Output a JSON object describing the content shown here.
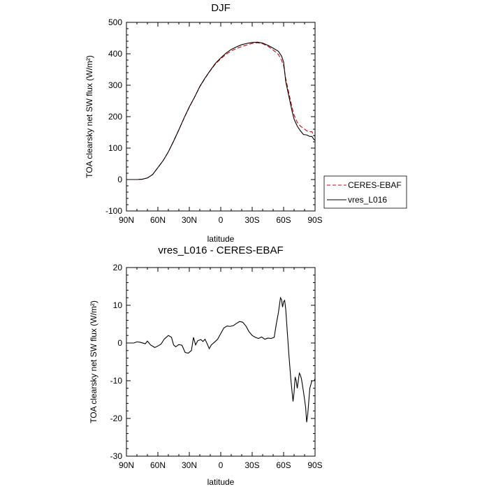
{
  "chart_data": [
    {
      "type": "line",
      "title": "DJF",
      "xlabel": "latitude",
      "ylabel": "TOA clearsky net SW flux (W/m²)",
      "xlim": [
        -90,
        90
      ],
      "ylim": [
        -100,
        500
      ],
      "x_ticks": [
        -90,
        -60,
        -30,
        0,
        30,
        60,
        90
      ],
      "x_tick_labels": [
        "90N",
        "60N",
        "30N",
        "0",
        "30S",
        "60S",
        "90S"
      ],
      "y_ticks": [
        -100,
        0,
        100,
        200,
        300,
        400,
        500
      ],
      "y_tick_labels": [
        "-100",
        "0",
        "100",
        "200",
        "300",
        "400",
        "500"
      ],
      "legend_position": "outside-right",
      "series": [
        {
          "name": "CERES-EBAF",
          "color": "#e00000",
          "dash": "dashed",
          "points": [
            [
              -90,
              0
            ],
            [
              -80,
              0
            ],
            [
              -75,
              1
            ],
            [
              -70,
              5
            ],
            [
              -65,
              16
            ],
            [
              -60,
              38
            ],
            [
              -55,
              60
            ],
            [
              -50,
              88
            ],
            [
              -45,
              122
            ],
            [
              -40,
              158
            ],
            [
              -35,
              195
            ],
            [
              -30,
              230
            ],
            [
              -25,
              262
            ],
            [
              -20,
              295
            ],
            [
              -15,
              322
            ],
            [
              -10,
              346
            ],
            [
              -5,
              368
            ],
            [
              0,
              384
            ],
            [
              5,
              398
            ],
            [
              10,
              409
            ],
            [
              15,
              417
            ],
            [
              20,
              423
            ],
            [
              25,
              428
            ],
            [
              30,
              433
            ],
            [
              35,
              435
            ],
            [
              40,
              432
            ],
            [
              45,
              424
            ],
            [
              50,
              412
            ],
            [
              55,
              398
            ],
            [
              58,
              380
            ],
            [
              60,
              362
            ],
            [
              62,
              322
            ],
            [
              65,
              275
            ],
            [
              68,
              230
            ],
            [
              70,
              205
            ],
            [
              73,
              182
            ],
            [
              76,
              170
            ],
            [
              79,
              163
            ],
            [
              82,
              155
            ],
            [
              85,
              152
            ],
            [
              87,
              152
            ],
            [
              89,
              140
            ],
            [
              90,
              138
            ]
          ]
        },
        {
          "name": "vres_L016",
          "color": "#000000",
          "dash": "solid",
          "points": [
            [
              -90,
              0
            ],
            [
              -80,
              0
            ],
            [
              -75,
              1
            ],
            [
              -70,
              5
            ],
            [
              -65,
              16
            ],
            [
              -60,
              38
            ],
            [
              -55,
              60
            ],
            [
              -50,
              88
            ],
            [
              -45,
              122
            ],
            [
              -40,
              158
            ],
            [
              -35,
              196
            ],
            [
              -30,
              231
            ],
            [
              -25,
              262
            ],
            [
              -20,
              296
            ],
            [
              -15,
              323
            ],
            [
              -10,
              347
            ],
            [
              -5,
              370
            ],
            [
              0,
              387
            ],
            [
              5,
              402
            ],
            [
              10,
              414
            ],
            [
              15,
              422
            ],
            [
              20,
              429
            ],
            [
              25,
              433
            ],
            [
              30,
              436
            ],
            [
              35,
              437
            ],
            [
              40,
              434
            ],
            [
              45,
              427
            ],
            [
              50,
              418
            ],
            [
              55,
              408
            ],
            [
              58,
              393
            ],
            [
              60,
              374
            ],
            [
              62,
              312
            ],
            [
              65,
              265
            ],
            [
              68,
              218
            ],
            [
              70,
              192
            ],
            [
              73,
              170
            ],
            [
              76,
              155
            ],
            [
              79,
              143
            ],
            [
              82,
              142
            ],
            [
              85,
              137
            ],
            [
              87,
              137
            ],
            [
              89,
              127
            ],
            [
              90,
              125
            ]
          ]
        }
      ]
    },
    {
      "type": "line",
      "title": "vres_L016 - CERES-EBAF",
      "xlabel": "latitude",
      "ylabel": "TOA clearsky net SW flux (W/m²)",
      "xlim": [
        -90,
        90
      ],
      "ylim": [
        -30,
        20
      ],
      "x_ticks": [
        -90,
        -60,
        -30,
        0,
        30,
        60,
        90
      ],
      "x_tick_labels": [
        "90N",
        "60N",
        "30N",
        "0",
        "30S",
        "60S",
        "90S"
      ],
      "y_ticks": [
        -30,
        -20,
        -10,
        0,
        10,
        20
      ],
      "y_tick_labels": [
        "-30",
        "-20",
        "-10",
        "0",
        "10",
        "20"
      ],
      "series": [
        {
          "name": "",
          "color": "#000000",
          "dash": "solid",
          "points": [
            [
              -90,
              0
            ],
            [
              -83,
              0
            ],
            [
              -80,
              0.3
            ],
            [
              -77,
              0.2
            ],
            [
              -72,
              -0.2
            ],
            [
              -70,
              0.5
            ],
            [
              -67,
              -0.5
            ],
            [
              -63,
              -1.2
            ],
            [
              -60,
              -0.8
            ],
            [
              -57,
              -0.3
            ],
            [
              -54,
              1
            ],
            [
              -50,
              2
            ],
            [
              -47,
              1.5
            ],
            [
              -45,
              -0.5
            ],
            [
              -43,
              -1
            ],
            [
              -40,
              -0.4
            ],
            [
              -37,
              -0.6
            ],
            [
              -34,
              -2.5
            ],
            [
              -31,
              -2.7
            ],
            [
              -28,
              -2
            ],
            [
              -26,
              1.5
            ],
            [
              -24,
              -0.5
            ],
            [
              -22,
              0.6
            ],
            [
              -19,
              0.9
            ],
            [
              -17,
              0.4
            ],
            [
              -15,
              1
            ],
            [
              -13,
              -0.2
            ],
            [
              -11,
              -1.5
            ],
            [
              -9,
              -0.5
            ],
            [
              -6,
              0.2
            ],
            [
              -3,
              1
            ],
            [
              0,
              2.5
            ],
            [
              3,
              4
            ],
            [
              6,
              4.5
            ],
            [
              9,
              4.4
            ],
            [
              12,
              4.6
            ],
            [
              15,
              5.2
            ],
            [
              18,
              5.7
            ],
            [
              21,
              5.5
            ],
            [
              24,
              4.5
            ],
            [
              27,
              3
            ],
            [
              30,
              2
            ],
            [
              33,
              1.5
            ],
            [
              36,
              1.2
            ],
            [
              39,
              1.6
            ],
            [
              42,
              1
            ],
            [
              45,
              1.3
            ],
            [
              48,
              1.2
            ],
            [
              51,
              1.5
            ],
            [
              53,
              5
            ],
            [
              55,
              8
            ],
            [
              57,
              12
            ],
            [
              58,
              11.5
            ],
            [
              59,
              9.5
            ],
            [
              60,
              11
            ],
            [
              61,
              11.3
            ],
            [
              62,
              9
            ],
            [
              63,
              5
            ],
            [
              65,
              -3
            ],
            [
              67,
              -10
            ],
            [
              69,
              -15.5
            ],
            [
              70,
              -13
            ],
            [
              71,
              -9
            ],
            [
              72,
              -10
            ],
            [
              73,
              -12
            ],
            [
              74,
              -10
            ],
            [
              75,
              -8
            ],
            [
              76,
              -8.5
            ],
            [
              77,
              -9.5
            ],
            [
              79,
              -13
            ],
            [
              81,
              -17
            ],
            [
              82,
              -21
            ],
            [
              83,
              -19
            ],
            [
              85,
              -12
            ],
            [
              87,
              -10
            ],
            [
              89,
              -10
            ],
            [
              90,
              -9.5
            ]
          ]
        }
      ]
    }
  ]
}
